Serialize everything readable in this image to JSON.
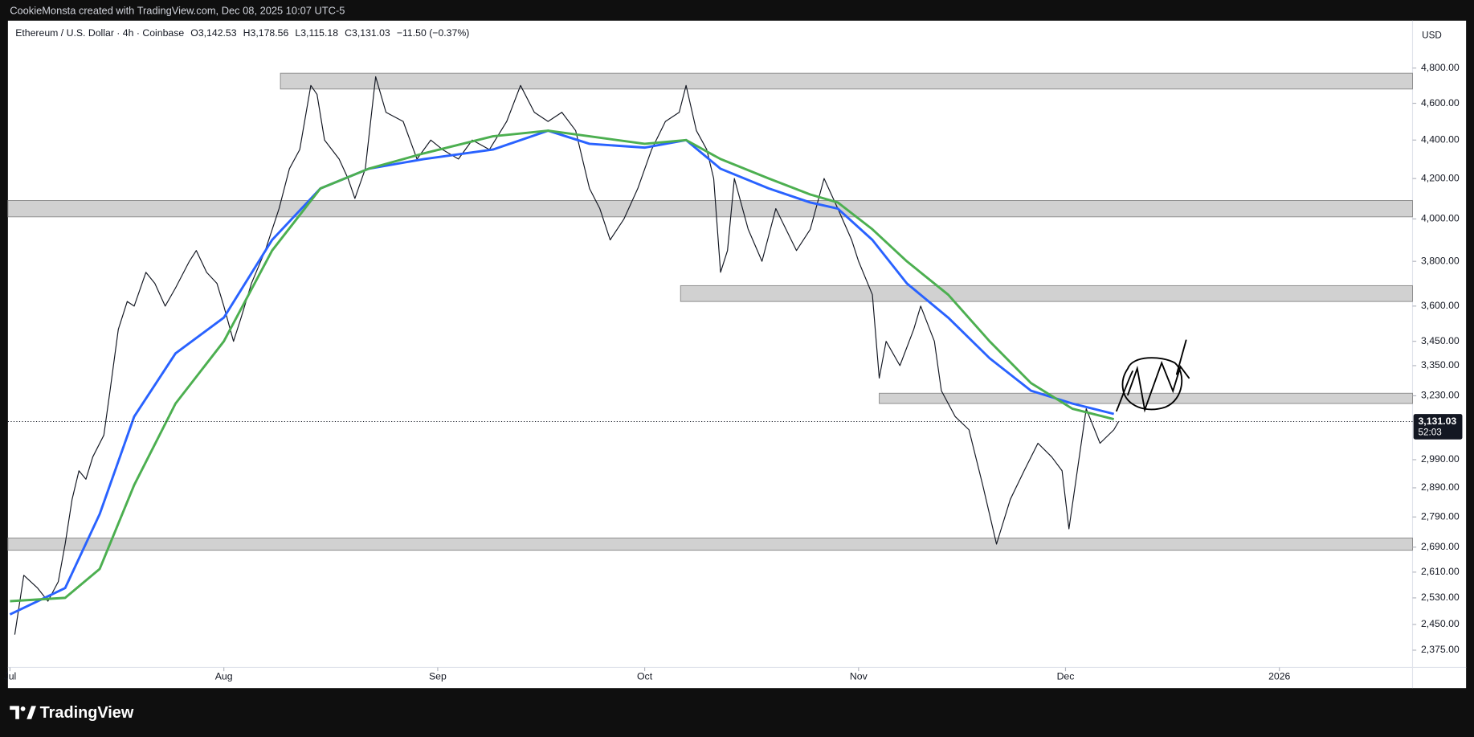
{
  "header": {
    "credit": "CookieMonsta created with TradingView.com, Dec 08, 2025 10:07 UTC-5"
  },
  "footer": {
    "brand": "TradingView"
  },
  "chart_data": {
    "type": "line",
    "title": "Ethereum / U.S. Dollar · 4h · Coinbase",
    "ohlc": [
      "O3,142.53",
      "H3,178.56",
      "L3,115.18",
      "C3,131.03",
      "−11.50 (−0.37%)"
    ],
    "currency": "USD",
    "log_scale": true,
    "grid": false,
    "xlim": [
      -0.3,
      203.3
    ],
    "xticks": [
      {
        "value": 0,
        "label": "Jul"
      },
      {
        "value": 31,
        "label": "Aug"
      },
      {
        "value": 62,
        "label": "Sep"
      },
      {
        "value": 92,
        "label": "Oct"
      },
      {
        "value": 123,
        "label": "Nov"
      },
      {
        "value": 153,
        "label": "Dec"
      },
      {
        "value": 184,
        "label": "2026"
      }
    ],
    "ylim": [
      2326,
      5083
    ],
    "yticks": [
      {
        "value": 4800,
        "label": "4,800.00"
      },
      {
        "value": 4600,
        "label": "4,600.00"
      },
      {
        "value": 4400,
        "label": "4,400.00"
      },
      {
        "value": 4200,
        "label": "4,200.00"
      },
      {
        "value": 4000,
        "label": "4,000.00"
      },
      {
        "value": 3800,
        "label": "3,800.00"
      },
      {
        "value": 3600,
        "label": "3,600.00"
      },
      {
        "value": 3450,
        "label": "3,450.00"
      },
      {
        "value": 3350,
        "label": "3,350.00"
      },
      {
        "value": 3230,
        "label": "3,230.00"
      },
      {
        "value": 2990,
        "label": "2,990.00"
      },
      {
        "value": 2890,
        "label": "2,890.00"
      },
      {
        "value": 2790,
        "label": "2,790.00"
      },
      {
        "value": 2690,
        "label": "2,690.00"
      },
      {
        "value": 2610,
        "label": "2,610.00"
      },
      {
        "value": 2530,
        "label": "2,530.00"
      },
      {
        "value": 2450,
        "label": "2,450.00"
      },
      {
        "value": 2375,
        "label": "2,375.00"
      }
    ],
    "last_price": {
      "value": 3131.03,
      "label": "3,131.03"
    },
    "countdown": "52:03",
    "zones": [
      {
        "from": 39.2,
        "range": [
          4680,
          4770
        ]
      },
      {
        "from": -0.3,
        "range": [
          4010,
          4090
        ]
      },
      {
        "from": 97.2,
        "range": [
          3620,
          3690
        ]
      },
      {
        "from": 126,
        "range": [
          3200,
          3240
        ]
      },
      {
        "from": -0.3,
        "range": [
          2680,
          2720
        ]
      }
    ],
    "series": [
      {
        "color": "#131722",
        "width": 1,
        "x": [
          0.7,
          2,
          4,
          5.5,
          7,
          8,
          9,
          10,
          11,
          12,
          13.6,
          14.5,
          15.7,
          17,
          18,
          19.7,
          21,
          22.5,
          24,
          26,
          27,
          28.5,
          30,
          31,
          32.4,
          33.5,
          35,
          37,
          39,
          40.5,
          42,
          43.6,
          44.5,
          45.6,
          47.7,
          49,
          50,
          51.5,
          53,
          54.5,
          57,
          59,
          61,
          62.7,
          65,
          67,
          69.5,
          72,
          74,
          76,
          78,
          80,
          82,
          84,
          85.5,
          87,
          89,
          91,
          93,
          95,
          97,
          98,
          99.5,
          101,
          102,
          103,
          104,
          105,
          107,
          109,
          111,
          114,
          116,
          118,
          120,
          122,
          123,
          125,
          126,
          127,
          129,
          131,
          132,
          134,
          135,
          137,
          139,
          141,
          143,
          145,
          147,
          149,
          151,
          152.5,
          153.5,
          155,
          156,
          158,
          160,
          160.7
        ],
        "values": [
          2420,
          2600,
          2560,
          2520,
          2580,
          2700,
          2850,
          2950,
          2920,
          3000,
          3080,
          3250,
          3500,
          3620,
          3600,
          3750,
          3700,
          3600,
          3680,
          3800,
          3850,
          3750,
          3700,
          3600,
          3450,
          3550,
          3700,
          3850,
          4050,
          4250,
          4350,
          4700,
          4650,
          4400,
          4300,
          4200,
          4100,
          4250,
          4750,
          4550,
          4500,
          4300,
          4400,
          4350,
          4300,
          4400,
          4350,
          4500,
          4700,
          4550,
          4500,
          4550,
          4450,
          4150,
          4050,
          3900,
          4000,
          4150,
          4350,
          4500,
          4550,
          4700,
          4450,
          4350,
          4200,
          3750,
          3850,
          4200,
          3950,
          3800,
          4050,
          3850,
          3950,
          4200,
          4050,
          3900,
          3800,
          3650,
          3300,
          3450,
          3350,
          3500,
          3600,
          3450,
          3250,
          3150,
          3100,
          2900,
          2700,
          2850,
          2950,
          3050,
          3000,
          2950,
          2750,
          3000,
          3180,
          3050,
          3100,
          3131.03
        ]
      },
      {
        "color": "#2962ff",
        "width": 2.5,
        "x": [
          0,
          8,
          13,
          18,
          24,
          31,
          38,
          45,
          52,
          60,
          70,
          78,
          84,
          92,
          98,
          103,
          110,
          116,
          120,
          125,
          130,
          136,
          142,
          148,
          154,
          160
        ],
        "values": [
          2480,
          2560,
          2800,
          3150,
          3400,
          3550,
          3900,
          4150,
          4250,
          4300,
          4350,
          4450,
          4380,
          4360,
          4400,
          4250,
          4150,
          4080,
          4050,
          3900,
          3700,
          3550,
          3380,
          3250,
          3200,
          3160
        ]
      },
      {
        "color": "#4caf50",
        "width": 2.5,
        "x": [
          0,
          8,
          13,
          18,
          24,
          31,
          38,
          45,
          52,
          60,
          70,
          78,
          84,
          92,
          98,
          103,
          110,
          116,
          120,
          125,
          130,
          136,
          142,
          148,
          154,
          160
        ],
        "values": [
          2520,
          2530,
          2620,
          2900,
          3200,
          3450,
          3850,
          4150,
          4250,
          4330,
          4420,
          4450,
          4420,
          4380,
          4400,
          4300,
          4200,
          4120,
          4080,
          3950,
          3800,
          3650,
          3450,
          3280,
          3180,
          3140
        ]
      }
    ]
  }
}
